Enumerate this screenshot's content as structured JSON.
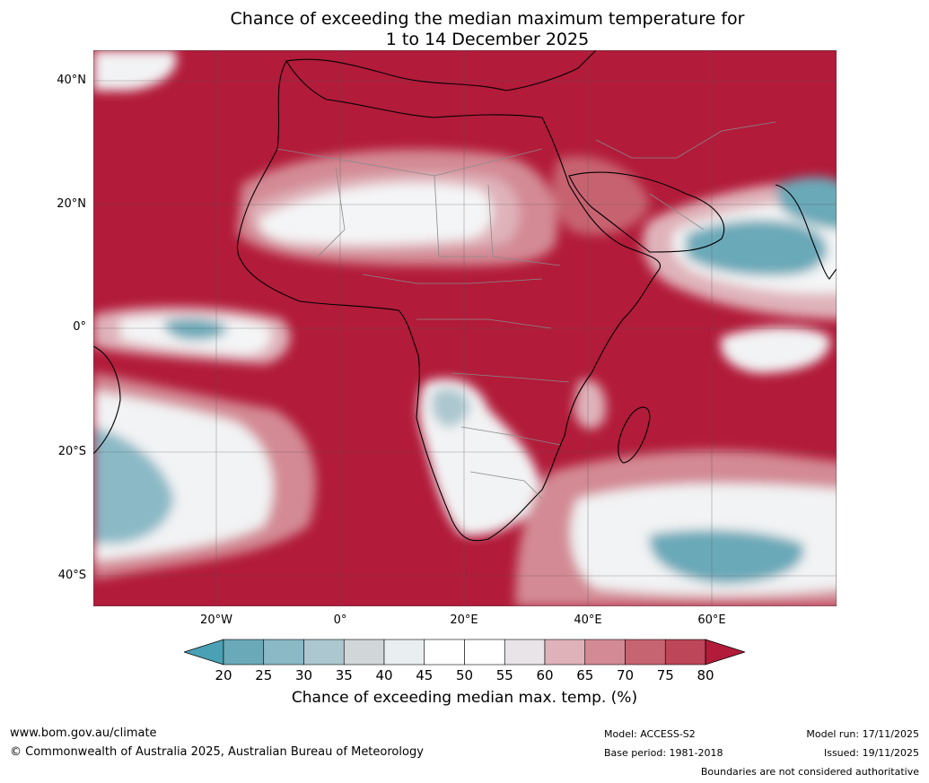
{
  "title_line1": "Chance of exceeding the median maximum temperature for",
  "title_line2": "1 to 14 December 2025",
  "lat_labels": [
    "40°N",
    "20°N",
    "0°",
    "20°S",
    "40°S"
  ],
  "lon_labels": [
    "20°W",
    "0°",
    "20°E",
    "40°E",
    "60°E"
  ],
  "colorbar": {
    "ticks": [
      "20",
      "25",
      "30",
      "35",
      "40",
      "45",
      "50",
      "55",
      "60",
      "65",
      "70",
      "75",
      "80"
    ],
    "colors": [
      "#6aa9b8",
      "#8bb9c6",
      "#acc7cf",
      "#d1d6d9",
      "#e9eef1",
      "#ffffff",
      "#ffffff",
      "#e8e4e7",
      "#dfb2b9",
      "#d38a94",
      "#c76471",
      "#bd4658"
    ],
    "under_color": "#4aa0b4",
    "over_color": "#b21b3a",
    "label": "Chance of exceeding median max. temp. (%)"
  },
  "footer": {
    "website": "www.bom.gov.au/climate",
    "copyright": "© Commonwealth of Australia 2025, Australian Bureau of Meteorology",
    "model": "Model: ACCESS-S2",
    "base_period": "Base period: 1981-2018",
    "model_run": "Model run: 17/11/2025",
    "issued": "Issued: 19/11/2025",
    "disclaimer": "Boundaries are not considered authoritative"
  }
}
